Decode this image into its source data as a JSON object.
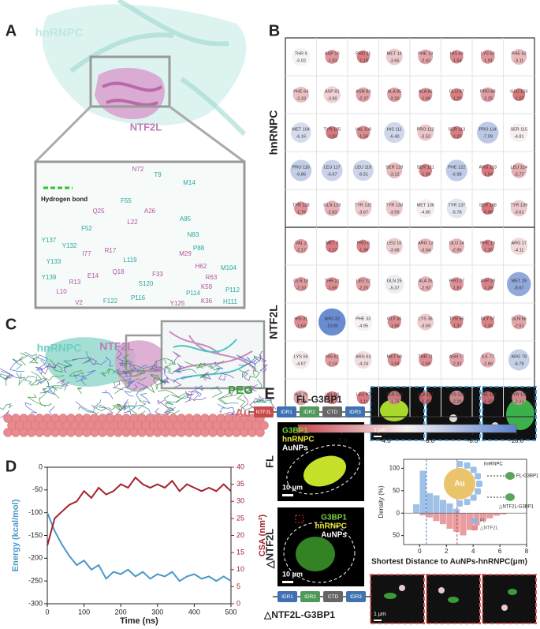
{
  "panels": {
    "A": {
      "label": "A",
      "protein": "hnRNPC",
      "partner": "NTF2L",
      "legend": "Hydrogen bond",
      "hnRNPC_residues": [
        "T9",
        "M14",
        "F52",
        "F55",
        "A85",
        "N83",
        "P88",
        "M104",
        "Y137",
        "Y132",
        "Y133",
        "Y139",
        "L119",
        "P116",
        "P112",
        "H111",
        "S120",
        "F122",
        "P114"
      ],
      "NTF2L_residues": [
        "N72",
        "Q25",
        "L22",
        "A26",
        "I77",
        "R17",
        "Q18",
        "F33",
        "M29",
        "H62",
        "R63",
        "K59",
        "K36",
        "Y125",
        "V2",
        "L10",
        "R13",
        "E14"
      ]
    },
    "B": {
      "label": "B"
    },
    "C": {
      "label": "C",
      "protein": "hnRNPC",
      "partner": "NTF2L",
      "polymer": "PEG",
      "particle": "Au"
    },
    "D": {
      "label": "D"
    },
    "E": {
      "label": "E",
      "constructs": [
        {
          "name": "FL-G3BP1",
          "domains": [
            "NTF2L",
            "IDR1",
            "IDR2",
            "CTD",
            "IDR3"
          ]
        },
        {
          "name": "△NTF2L-G3BP1",
          "domains": [
            "IDR1",
            "IDR2",
            "CTD",
            "IDR3"
          ]
        }
      ],
      "images": [
        {
          "row": "FL",
          "channels": [
            "G3BP1",
            "hnRNPC",
            "AuNPs"
          ],
          "scale": "10 μm"
        },
        {
          "row": "△NTF2L",
          "channels": [
            "G3BP1",
            "hnRNPC",
            "AuNPs"
          ],
          "scale": "10 μm"
        }
      ],
      "zoom_scales": [
        "1 μm",
        "1 μm"
      ],
      "schematic": {
        "particle": "Au",
        "protein": "hnRNPC",
        "bound": "FL-G3BP1",
        "unbound": "△NTF2L-G3BP1"
      }
    }
  },
  "chart_data": [
    {
      "type": "bubble-grid",
      "groups": [
        {
          "name": "hnRNPC",
          "residues": [
            "THR 9",
            "ASP 10",
            "PRO 11",
            "MET 14",
            "PHE 19",
            "HIS 49",
            "LYS 50",
            "PHE 62",
            "PHE 64",
            "ASP 81",
            "ASN 83",
            "ALA 85",
            "ALA 86",
            "GLU 87",
            "PRO 88",
            "GLU 103",
            "MET 104",
            "TYR 105",
            "VAL 108",
            "HIS 111",
            "PRO 112",
            "SER 113",
            "PRO 114",
            "SER 115",
            "PRO 116",
            "LEU 117",
            "LEU 118",
            "SER 120",
            "SER 121",
            "PHE 122",
            "ARG 123",
            "LEU 124",
            "TYR 128",
            "GLN 129",
            "TYR 132",
            "TYR 133",
            "MET 136",
            "TYR 137",
            "SER 138",
            "TYR 139"
          ],
          "values": [
            -5.02,
            -1.93,
            -1.18,
            -3.65,
            -2.42,
            -1.54,
            -1.91,
            -3.11,
            -3.33,
            -3.9,
            -2.37,
            -2.2,
            -1.69,
            -1.2,
            -2.25,
            -1.02,
            -6.16,
            -1.03,
            -1.59,
            -6.4,
            -3.52,
            -1.2,
            -7.09,
            -4.81,
            -6.86,
            -6.67,
            -6.51,
            -3.12,
            -1.39,
            -6.98,
            -1.04,
            -2.77,
            -1.76,
            -2.83,
            -3.67,
            -3.59,
            -4.8,
            -5.78,
            -0.98,
            -3.61
          ],
          "value_labels": [
            "-5.02",
            "-1.93",
            "-1.18",
            "-3.65",
            "-2.42",
            "-1.54",
            "-1.91",
            "-3.11",
            "-3.33",
            "-3.90",
            "-2.37",
            "-2.20",
            "-1.69",
            "-1.20",
            "-2.25",
            "-1.02",
            "-6.16",
            "-1.03",
            "-1.59",
            "-6.40",
            "-3.52",
            "-1.20",
            "-7.09",
            "-4.81",
            "-6.86",
            "-6.67",
            "-6.51",
            "-3.12",
            "-1.39",
            "-6.98",
            "-1.04",
            "-2.77",
            "-1.76",
            "-2.83",
            "-3.67",
            "-3.59",
            "-4.80",
            "-5.78",
            "-0.98",
            "-3.61"
          ]
        },
        {
          "name": "NTF2L",
          "residues": [
            "VAL 2",
            "MET 3",
            "PRO 6",
            "LEU 10",
            "ARG 13",
            "GLU 14",
            "PHE 15",
            "ARG 17",
            "GLN 18",
            "THR 21",
            "LEU 22",
            "GLN 25",
            "ALA 26",
            "PRO 27",
            "ASP 28",
            "MET 29",
            "HIS 31",
            "ARG 32",
            "PHE 33",
            "GLY 35",
            "LYS 36",
            "TYR 56",
            "GLY 57",
            "GLN 58",
            "LYS 59",
            "HIS 62",
            "ARG 63",
            "MET 68",
            "THR 71",
            "ASN 77",
            "ILE 77",
            "ARG 78",
            "HIS 79",
            "VAL 80",
            "LEU 97",
            "SER 119",
            "ALA 121",
            "LYS 123",
            "PHE 124",
            "TYR 125"
          ],
          "values": [
            -2.17,
            -1.17,
            -1.39,
            -3.68,
            -3.04,
            -2.95,
            -1.39,
            -4.11,
            -2.1,
            -1.69,
            -2.2,
            -5.37,
            -2.92,
            -1.81,
            -1.39,
            -8.67,
            -1.64,
            -10.8,
            -4.95,
            -1.66,
            -3.69,
            -1.31,
            -1.34,
            -2.51,
            -4.67,
            -2.14,
            -4.24,
            -1.64,
            -1.69,
            -2.31,
            -2.86,
            -6.78,
            -2.53,
            -1.17,
            -1.11,
            -1.76,
            -1.03,
            -2.2,
            -1.33,
            -2.23
          ],
          "value_labels": [
            "-2.17",
            "-1.17",
            "-1.39",
            "-3.68",
            "-3.04",
            "-2.95",
            "-1.39",
            "-4.11",
            "-2.10",
            "-1.69",
            "-2.20",
            "-5.37",
            "-2.92",
            "-1.81",
            "-1.39",
            "-8.67",
            "-1.64",
            "-10.80",
            "-4.95",
            "-1.66",
            "-3.69",
            "-1.31",
            "-1.34",
            "-2.51",
            "-4.67",
            "-2.14",
            "-4.24",
            "-1.64",
            "-1.69",
            "-2.31",
            "-2.86",
            "-6.78",
            "-2.53",
            "-1.17",
            "-1.11",
            "-1.76",
            "-1.03",
            "-2.20",
            "-1.33",
            "-2.23"
          ]
        }
      ],
      "columns": 8,
      "colors": [
        "#c9474f",
        "#f7f3f3",
        "#5a80cc"
      ],
      "clim": [
        0,
        -10
      ],
      "cticks": [
        {
          "value": 0,
          "label": "0.0"
        },
        {
          "value": -2,
          "label": "-2.0"
        },
        {
          "value": -4,
          "label": "-4.0"
        },
        {
          "value": -6,
          "label": "-6.0"
        },
        {
          "value": -8,
          "label": "-8.0"
        },
        {
          "value": -10,
          "label": "-10.0"
        }
      ]
    },
    {
      "type": "line",
      "xlabel": "Time (ns)",
      "ylabel": "Energy (kcal/mol)",
      "y2label": "CSA (nm²)",
      "x": [
        0,
        20,
        40,
        60,
        80,
        100,
        120,
        140,
        160,
        180,
        200,
        220,
        240,
        260,
        280,
        300,
        320,
        340,
        360,
        380,
        400,
        420,
        440,
        460,
        480,
        500
      ],
      "series": [
        {
          "color": "#4a97c9",
          "values": [
            -100,
            -140,
            -170,
            -195,
            -215,
            -205,
            -225,
            -215,
            -245,
            -230,
            -235,
            -225,
            -240,
            -230,
            -245,
            -235,
            -240,
            -230,
            -250,
            -240,
            -235,
            -245,
            -240,
            -250,
            -240,
            -250
          ]
        },
        {
          "color": "#a3222b",
          "axis": "y2",
          "values": [
            17,
            25,
            27,
            29,
            30,
            33,
            31,
            34,
            32,
            33,
            35,
            34,
            37,
            35,
            34,
            35,
            34,
            36,
            33,
            35,
            34,
            33,
            34,
            33,
            35,
            33
          ]
        }
      ],
      "xlim": [
        0,
        500
      ],
      "xticks": [
        0,
        100,
        200,
        300,
        400,
        500
      ],
      "ylim": [
        -300,
        0
      ],
      "yticks": [
        -300,
        -250,
        -200,
        -150,
        -100,
        -50,
        0
      ],
      "y2lim": [
        0,
        40
      ],
      "y2ticks": [
        0,
        5,
        10,
        15,
        20,
        25,
        30,
        35,
        40
      ]
    },
    {
      "type": "histogram",
      "xlabel": "Shortest Distance to AuNPs-hnRNPC(μm)",
      "ylabel": "Density (%)",
      "series": [
        {
          "name": "FL",
          "color": "#8fb6e3",
          "bins": [
            -0.5,
            0,
            0.5,
            1,
            1.5,
            2,
            2.5,
            3
          ],
          "values": [
            20,
            95,
            45,
            40,
            30,
            22,
            10
          ]
        },
        {
          "name": "△NTF2L",
          "color": "#e48c90",
          "bins": [
            0,
            0.5,
            1,
            1.5,
            2,
            2.5,
            3,
            3.5,
            4,
            4.5,
            5,
            5.5,
            6,
            6.5
          ],
          "values": [
            -5,
            -10,
            -18,
            -25,
            -35,
            -42,
            -50,
            -38,
            -28,
            -18,
            -12,
            -6,
            -3
          ]
        }
      ],
      "reference_lines": [
        {
          "value": 0.5,
          "color": "#4a7fc9"
        },
        {
          "value": 2.8,
          "color": "#c9474f"
        }
      ],
      "xlim": [
        -1.2,
        8
      ],
      "xticks": [
        0,
        2,
        4,
        6,
        8
      ],
      "ylim": [
        -70,
        120
      ],
      "yticks": [
        100,
        50,
        0,
        {
          "value": -50,
          "label": "50"
        }
      ]
    }
  ]
}
